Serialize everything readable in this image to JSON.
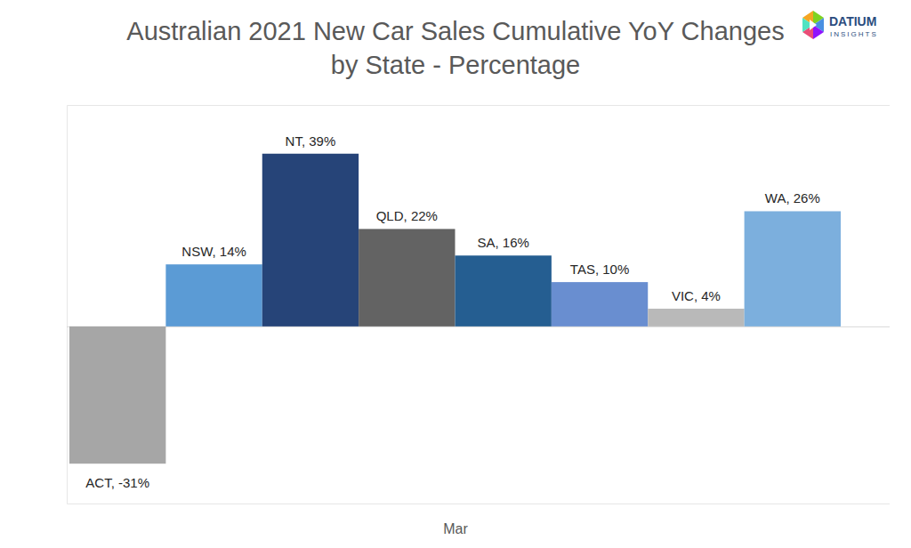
{
  "chart_data": {
    "type": "bar",
    "title": "Australian 2021 New Car Sales Cumulative YoY Changes by State - Percentage",
    "x_label": "Mar",
    "annotations": [
      "DATIUM",
      "INSIGHTS"
    ],
    "categories": [
      "ACT",
      "NSW",
      "NT",
      "QLD",
      "SA",
      "TAS",
      "VIC",
      "WA"
    ],
    "values": [
      -31,
      14,
      39,
      22,
      16,
      10,
      4,
      26
    ],
    "value_labels": [
      "ACT, -31%",
      "NSW, 14%",
      "NT, 39%",
      "QLD, 22%",
      "SA, 16%",
      "TAS, 10%",
      "VIC, 4%",
      "WA, 26%"
    ],
    "colors": [
      "#a6a6a6",
      "#5b9bd5",
      "#264478",
      "#636363",
      "#255e91",
      "#698ed0",
      "#b9b9b9",
      "#7cafdd"
    ],
    "ylim": [
      -40,
      50
    ],
    "yticks": [
      0
    ],
    "grid": true,
    "data_labels": true,
    "tick_labels": false
  }
}
